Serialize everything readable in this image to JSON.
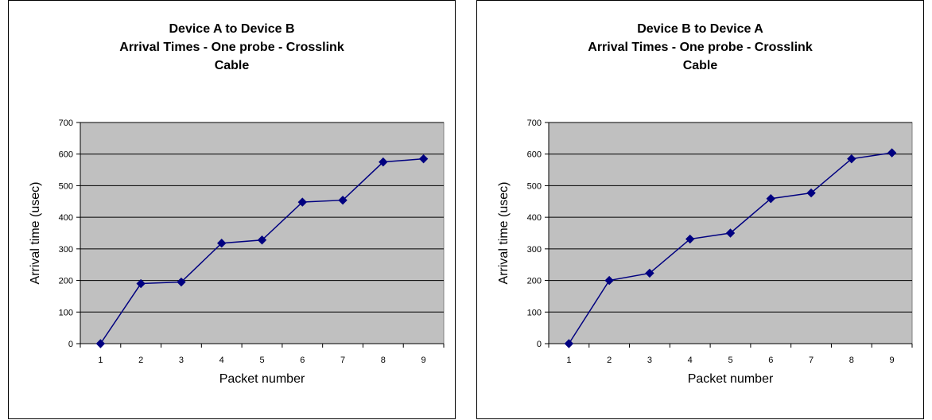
{
  "chart_data": [
    {
      "type": "line",
      "title_lines": [
        "Device A to Device B",
        "Arrival Times - One probe - Crosslink",
        "Cable"
      ],
      "xlabel": "Packet number",
      "ylabel": "Arrival time (usec)",
      "categories": [
        "1",
        "2",
        "3",
        "4",
        "5",
        "6",
        "7",
        "8",
        "9"
      ],
      "series": [
        {
          "values": [
            0,
            190,
            195,
            318,
            328,
            448,
            454,
            575,
            585
          ]
        }
      ],
      "ylim": [
        0,
        700
      ],
      "yticks": [
        "0",
        "100",
        "200",
        "300",
        "400",
        "500",
        "600",
        "700"
      ],
      "grid": true,
      "plot_background": "#c0c0c0",
      "line_color": "#000080"
    },
    {
      "type": "line",
      "title_lines": [
        "Device B to Device A",
        "Arrival Times - One probe - Crosslink",
        "Cable"
      ],
      "xlabel": "Packet number",
      "ylabel": "Arrival time (usec)",
      "categories": [
        "1",
        "2",
        "3",
        "4",
        "5",
        "6",
        "7",
        "8",
        "9"
      ],
      "series": [
        {
          "values": [
            0,
            200,
            223,
            331,
            350,
            459,
            477,
            585,
            604
          ]
        }
      ],
      "ylim": [
        0,
        700
      ],
      "yticks": [
        "0",
        "100",
        "200",
        "300",
        "400",
        "500",
        "600",
        "700"
      ],
      "grid": true,
      "plot_background": "#c0c0c0",
      "line_color": "#000080"
    }
  ]
}
